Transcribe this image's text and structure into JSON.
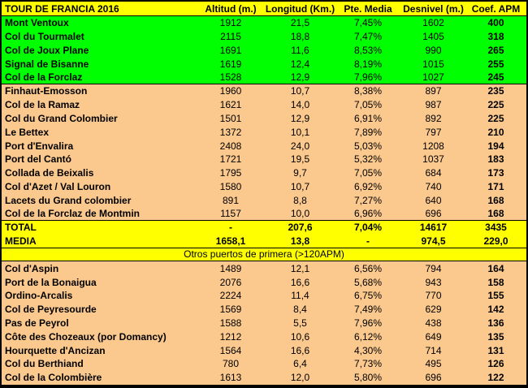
{
  "colors": {
    "header_bg": "#FFFF00",
    "top5_bg": "#00FF00",
    "category_bg": "#FBC98E",
    "summary_bg": "#FFFF00",
    "separator_bg": "#FFFF00",
    "border": "#000000",
    "text": "#000000"
  },
  "header": {
    "title": "TOUR DE FRANCIA 2016",
    "columns": [
      "Altitud (m.)",
      "Longitud (Km.)",
      "Pte. Media",
      "Desnivel (m.)",
      "Coef. APM"
    ]
  },
  "sections": [
    {
      "id": "top5",
      "bg": "#00FF00",
      "bold": false,
      "border_after": true,
      "rows": [
        [
          "Mont Ventoux",
          "1912",
          "21,5",
          "7,45%",
          "1602",
          "400"
        ],
        [
          "Col du Tourmalet",
          "2115",
          "18,8",
          "7,47%",
          "1405",
          "318"
        ],
        [
          "Col de Joux Plane",
          "1691",
          "11,6",
          "8,53%",
          "990",
          "265"
        ],
        [
          "Signal de Bisanne",
          "1619",
          "12,4",
          "8,19%",
          "1015",
          "255"
        ],
        [
          "Col de la Forclaz",
          "1528",
          "12,9",
          "7,96%",
          "1027",
          "245"
        ]
      ]
    },
    {
      "id": "first-category",
      "bg": "#FBC98E",
      "bold": false,
      "border_after": true,
      "rows": [
        [
          "Finhaut-Emosson",
          "1960",
          "10,7",
          "8,38%",
          "897",
          "235"
        ],
        [
          "Col de la Ramaz",
          "1621",
          "14,0",
          "7,05%",
          "987",
          "225"
        ],
        [
          "Col du Grand Colombier",
          "1501",
          "12,9",
          "6,91%",
          "892",
          "225"
        ],
        [
          "Le Bettex",
          "1372",
          "10,1",
          "7,89%",
          "797",
          "210"
        ],
        [
          "Port d'Envalira",
          "2408",
          "24,0",
          "5,03%",
          "1208",
          "194"
        ],
        [
          "Port del Cantó",
          "1721",
          "19,5",
          "5,32%",
          "1037",
          "183"
        ],
        [
          "Collada de Beixalis",
          "1795",
          "9,7",
          "7,05%",
          "684",
          "173"
        ],
        [
          "Col d'Azet / Val Louron",
          "1580",
          "10,7",
          "6,92%",
          "740",
          "171"
        ],
        [
          "Lacets du Grand colombier",
          "891",
          "8,8",
          "7,27%",
          "640",
          "168"
        ],
        [
          "Col de la Forclaz de Montmin",
          "1157",
          "10,0",
          "6,96%",
          "696",
          "168"
        ]
      ]
    },
    {
      "id": "summary",
      "bg": "#FFFF00",
      "bold": true,
      "border_after": true,
      "rows": [
        [
          "TOTAL",
          "-",
          "207,6",
          "7,04%",
          "14617",
          "3435"
        ],
        [
          "MEDIA",
          "1658,1",
          "13,8",
          "-",
          "974,5",
          "229,0"
        ]
      ]
    },
    {
      "id": "separator",
      "bg": "#FFFF00",
      "border_after": true,
      "label": "Otros puertos de primera (>120APM)"
    },
    {
      "id": "other-firsts",
      "bg": "#FBC98E",
      "bold": false,
      "border_after": false,
      "rows": [
        [
          "Col d'Aspin",
          "1489",
          "12,1",
          "6,56%",
          "794",
          "164"
        ],
        [
          "Port de la Bonaigua",
          "2076",
          "16,6",
          "5,68%",
          "943",
          "158"
        ],
        [
          "Ordino-Arcalis",
          "2224",
          "11,4",
          "6,75%",
          "770",
          "155"
        ],
        [
          "Col de Peyresourde",
          "1569",
          "8,4",
          "7,49%",
          "629",
          "142"
        ],
        [
          "Pas de Peyrol",
          "1588",
          "5,5",
          "7,96%",
          "438",
          "136"
        ],
        [
          "Côte des Chozeaux (por Domancy)",
          "1212",
          "10,6",
          "6,12%",
          "649",
          "135"
        ],
        [
          "Hourquette d'Ancizan",
          "1564",
          "16,6",
          "4,30%",
          "714",
          "131"
        ],
        [
          "Col du Berthiand",
          "780",
          "6,4",
          "7,73%",
          "495",
          "126"
        ],
        [
          "Col de la Colombière",
          "1613",
          "12,0",
          "5,80%",
          "696",
          "122"
        ]
      ]
    }
  ]
}
